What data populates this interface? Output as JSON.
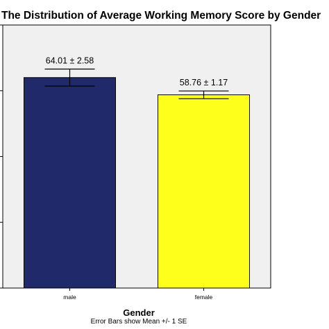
{
  "chart_data": {
    "type": "bar",
    "title": "The Distribution of  Average Working Memory Score  by Gender",
    "xlabel": "Gender",
    "footnote": "Error Bars show Mean +/- 1 SE",
    "categories": [
      "male",
      "female"
    ],
    "values": [
      64.01,
      58.76
    ],
    "errors": [
      2.58,
      1.17
    ],
    "value_labels": [
      "64.01 ± 2.58",
      "58.76 ± 1.17"
    ],
    "colors": [
      "#202a6a",
      "#ffff1c"
    ],
    "ylim": [
      0,
      80
    ],
    "grid": false,
    "background": "#f0f0f0"
  }
}
